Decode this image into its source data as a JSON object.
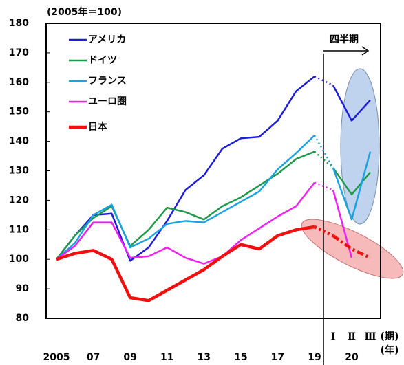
{
  "chart_data": {
    "type": "line",
    "unit_label": "(2005年＝100)",
    "categories": [
      "2005",
      null,
      "07",
      null,
      "09",
      null,
      "11",
      null,
      "13",
      null,
      "15",
      null,
      "17",
      null,
      "19",
      "Ⅰ",
      "Ⅱ",
      "Ⅲ"
    ],
    "year_2020_label": "20",
    "period_unit": "(期)",
    "year_unit": "(年)",
    "quarter_note": "四半期",
    "ylim": [
      80,
      180
    ],
    "yticks": [
      80,
      90,
      100,
      110,
      120,
      130,
      140,
      150,
      160,
      170,
      180
    ],
    "series": [
      {
        "name": "アメリカ",
        "color": "#1c1cd9",
        "values": [
          100,
          108,
          115,
          115.5,
          99.5,
          104,
          113,
          123.5,
          128.5,
          137.5,
          141,
          141.5,
          147,
          157,
          162,
          159,
          147,
          154
        ]
      },
      {
        "name": "ドイツ",
        "color": "#1e9a4a",
        "values": [
          100,
          108,
          114,
          118,
          104.5,
          110,
          117.5,
          116,
          113.5,
          118,
          121,
          125,
          129,
          134,
          136.5,
          131,
          122,
          129.5
        ]
      },
      {
        "name": "フランス",
        "color": "#1aa3e0",
        "values": [
          100,
          105.5,
          115,
          118.5,
          104,
          107,
          112,
          113,
          112.5,
          116,
          119.5,
          123,
          130.5,
          136,
          142,
          131,
          113.5,
          136.5
        ]
      },
      {
        "name": "ユーロ圏",
        "color": "#f020f0",
        "values": [
          100,
          104.5,
          112.5,
          112.5,
          100.5,
          101,
          104,
          100.5,
          98.5,
          101,
          106.5,
          110.5,
          114.5,
          118,
          126,
          123.5,
          100.5,
          null
        ]
      },
      {
        "name": "日本",
        "color": "#f01010",
        "values": [
          100,
          102,
          103,
          100,
          87,
          86,
          89.5,
          93,
          96.5,
          101,
          105,
          103.5,
          108,
          110,
          111,
          108,
          103.5,
          100.5
        ]
      }
    ]
  }
}
